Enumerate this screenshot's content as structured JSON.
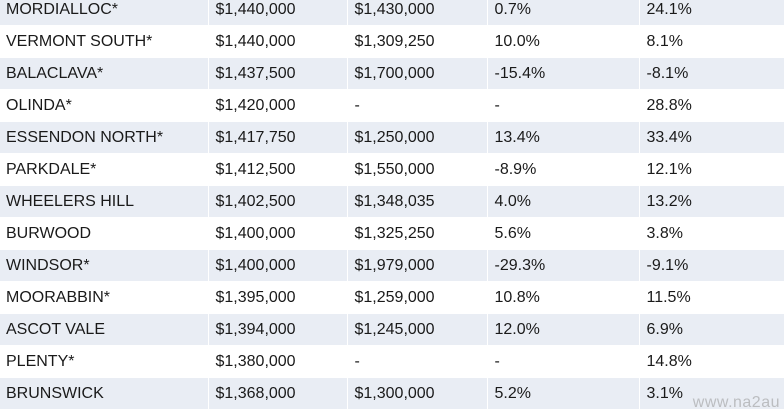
{
  "rows": [
    {
      "suburb": "MORDIALLOC*",
      "price_a": "$1,440,000",
      "price_b": "$1,430,000",
      "change_a": "0.7%",
      "change_b": "24.1%"
    },
    {
      "suburb": "VERMONT SOUTH*",
      "price_a": "$1,440,000",
      "price_b": "$1,309,250",
      "change_a": "10.0%",
      "change_b": "8.1%"
    },
    {
      "suburb": "BALACLAVA*",
      "price_a": "$1,437,500",
      "price_b": "$1,700,000",
      "change_a": "-15.4%",
      "change_b": "-8.1%"
    },
    {
      "suburb": "OLINDA*",
      "price_a": "$1,420,000",
      "price_b": "-",
      "change_a": "-",
      "change_b": "28.8%"
    },
    {
      "suburb": "ESSENDON NORTH*",
      "price_a": "$1,417,750",
      "price_b": "$1,250,000",
      "change_a": "13.4%",
      "change_b": "33.4%"
    },
    {
      "suburb": "PARKDALE*",
      "price_a": "$1,412,500",
      "price_b": "$1,550,000",
      "change_a": "-8.9%",
      "change_b": "12.1%"
    },
    {
      "suburb": "WHEELERS HILL",
      "price_a": "$1,402,500",
      "price_b": "$1,348,035",
      "change_a": "4.0%",
      "change_b": "13.2%"
    },
    {
      "suburb": "BURWOOD",
      "price_a": "$1,400,000",
      "price_b": "$1,325,250",
      "change_a": "5.6%",
      "change_b": "3.8%"
    },
    {
      "suburb": "WINDSOR*",
      "price_a": "$1,400,000",
      "price_b": "$1,979,000",
      "change_a": "-29.3%",
      "change_b": "-9.1%"
    },
    {
      "suburb": "MOORABBIN*",
      "price_a": "$1,395,000",
      "price_b": "$1,259,000",
      "change_a": "10.8%",
      "change_b": "11.5%"
    },
    {
      "suburb": "ASCOT VALE",
      "price_a": "$1,394,000",
      "price_b": "$1,245,000",
      "change_a": "12.0%",
      "change_b": "6.9%"
    },
    {
      "suburb": "PLENTY*",
      "price_a": "$1,380,000",
      "price_b": "-",
      "change_a": "-",
      "change_b": "14.8%"
    },
    {
      "suburb": "BRUNSWICK",
      "price_a": "$1,368,000",
      "price_b": "$1,300,000",
      "change_a": "5.2%",
      "change_b": "3.1%"
    }
  ],
  "watermark": "www.na2au"
}
